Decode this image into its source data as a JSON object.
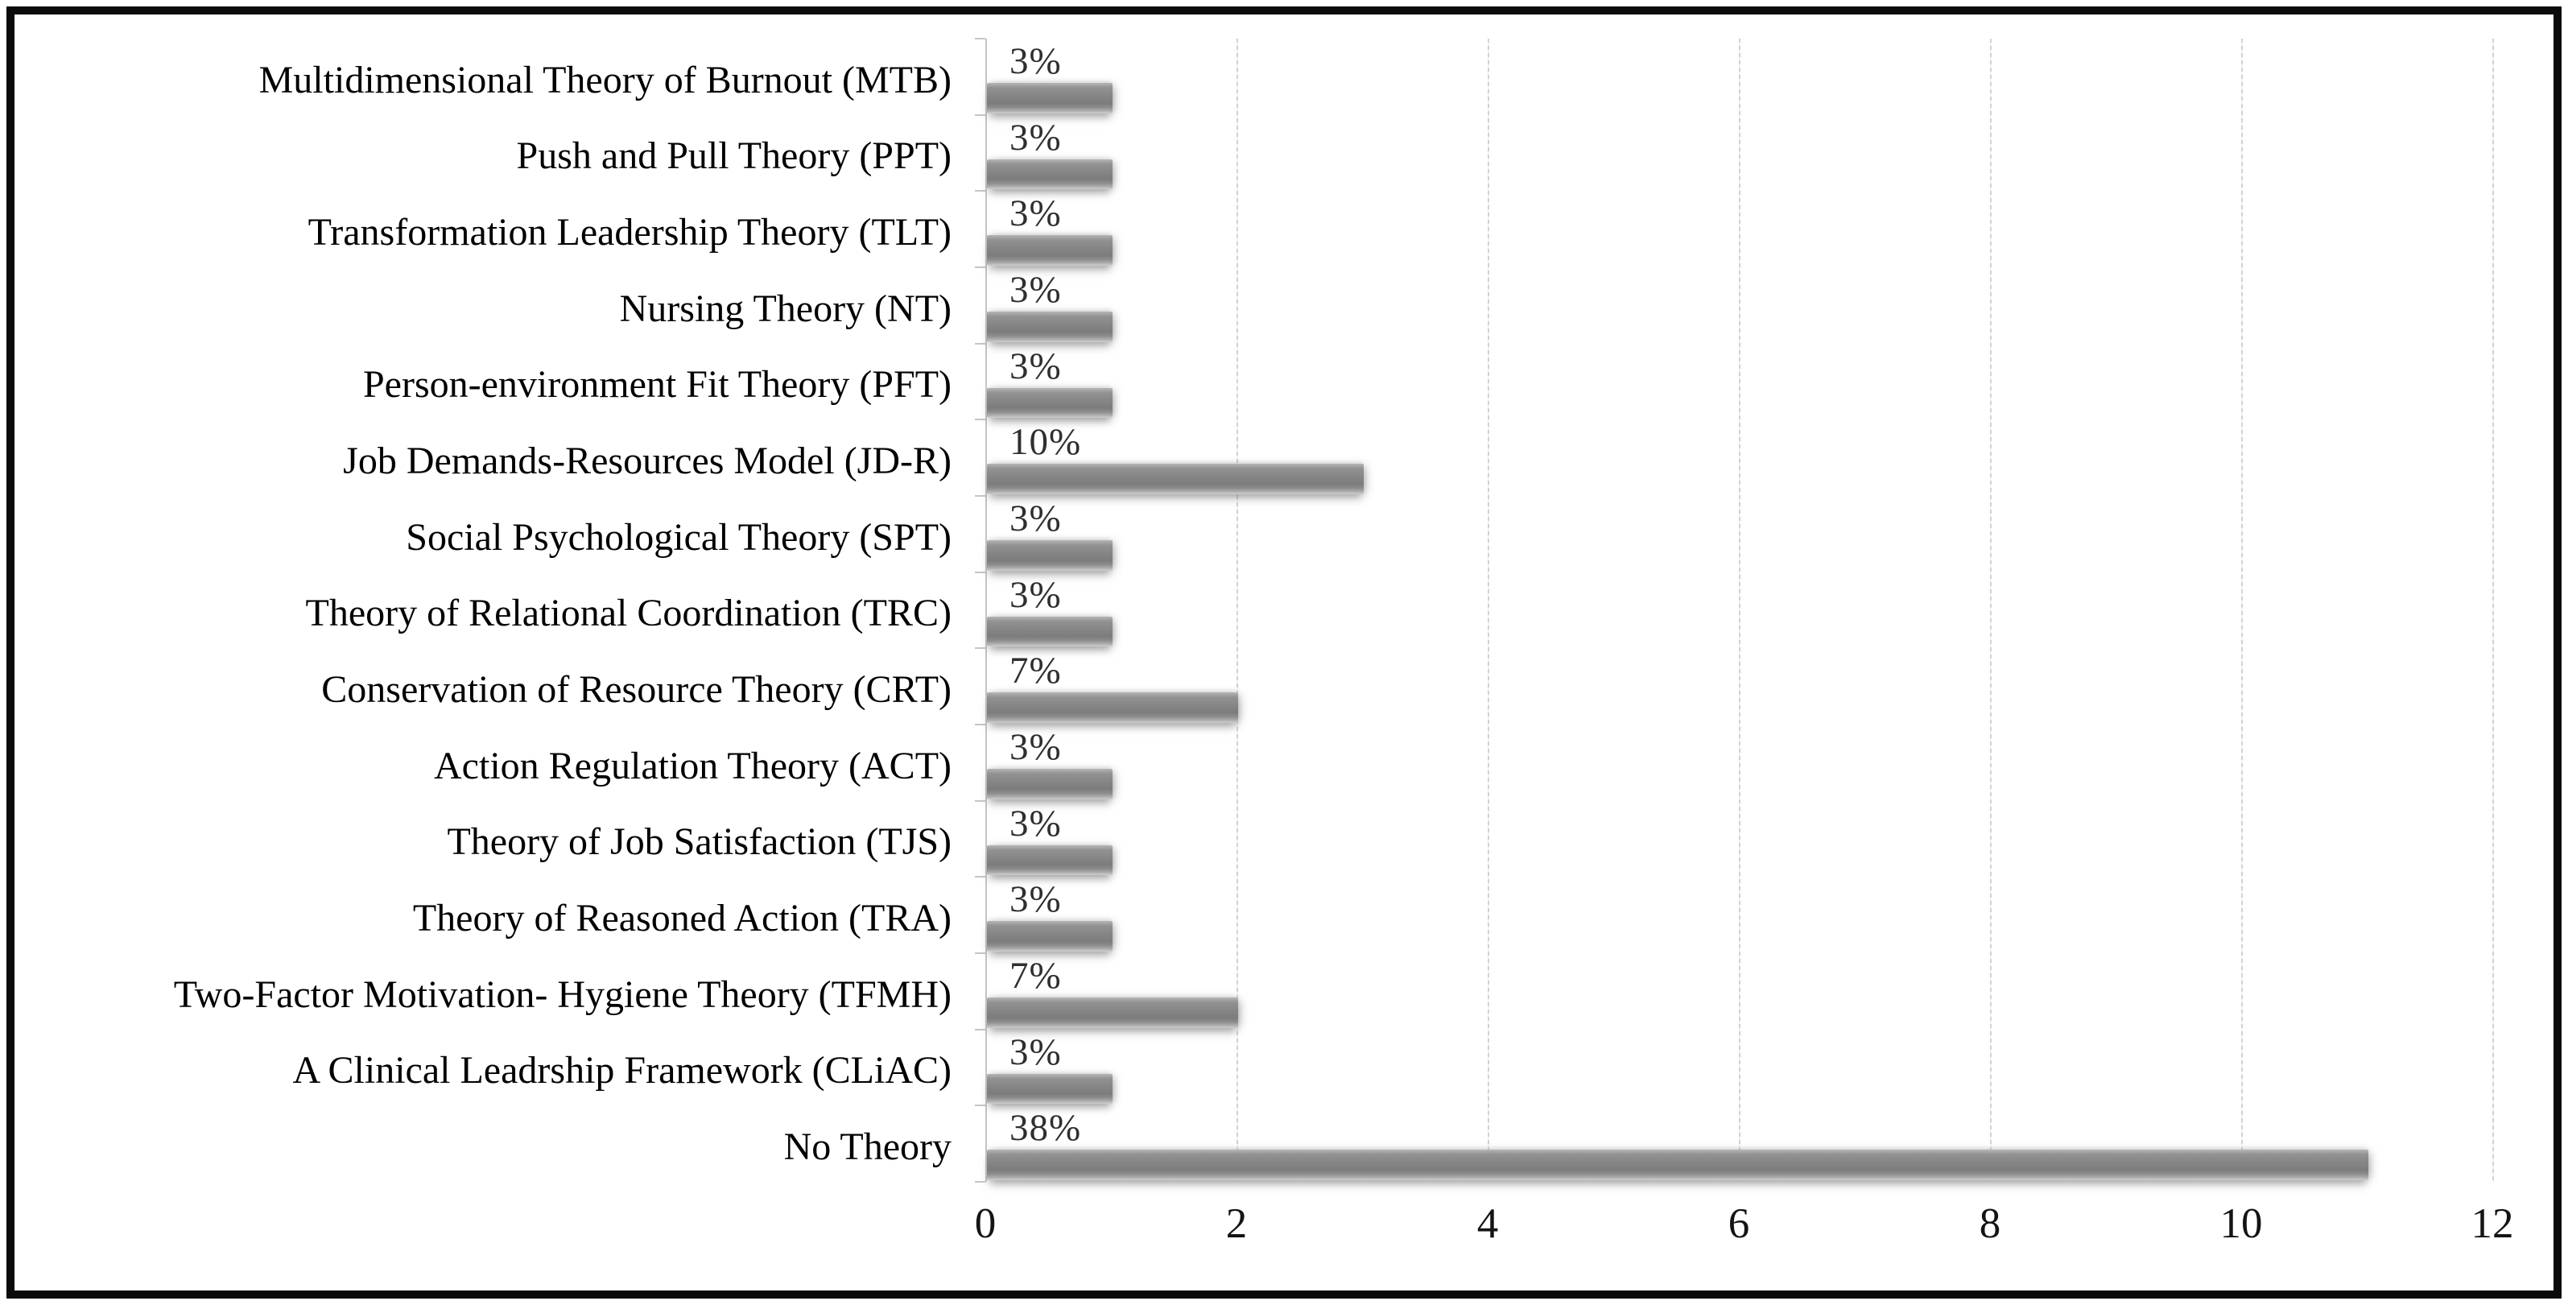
{
  "figure": {
    "background": "#ffffff",
    "border_color": "#0b0b0b",
    "gridline_color": "#d2d2d2",
    "axis_color": "#c4c4c4",
    "bar_color": "#868686",
    "value_label_color": "#2f2f2f",
    "category_label_color": "#000000"
  },
  "chart_data": {
    "type": "bar",
    "orientation": "horizontal",
    "title": "",
    "xlabel": "",
    "ylabel": "",
    "xlim": [
      0,
      12
    ],
    "x_ticks": [
      "0",
      "2",
      "4",
      "6",
      "8",
      "10",
      "12"
    ],
    "x_tick_values": [
      0,
      2,
      4,
      6,
      8,
      10,
      12
    ],
    "grid": "vertical-dotted-light",
    "legend": "none",
    "categories": [
      "Multidimensional Theory of Burnout (MTB)",
      "Push and Pull Theory (PPT)",
      "Transformation Leadership Theory (TLT)",
      "Nursing Theory (NT)",
      "Person-environment Fit Theory (PFT)",
      "Job Demands-Resources Model (JD-R)",
      "Social Psychological Theory (SPT)",
      "Theory of Relational Coordination (TRC)",
      "Conservation of Resource Theory (CRT)",
      "Action Regulation Theory (ACT)",
      "Theory of Job Satisfaction (TJS)",
      "Theory of Reasoned Action (TRA)",
      "Two-Factor Motivation- Hygiene Theory (TFMH)",
      "A Clinical Leadrship Framework (CLiAC)",
      "No Theory"
    ],
    "values": [
      1,
      1,
      1,
      1,
      1,
      3,
      1,
      1,
      2,
      1,
      1,
      1,
      2,
      1,
      11
    ],
    "percent_labels": [
      "3%",
      "3%",
      "3%",
      "3%",
      "3%",
      "10%",
      "3%",
      "3%",
      "7%",
      "3%",
      "3%",
      "3%",
      "7%",
      "3%",
      "38%"
    ]
  }
}
